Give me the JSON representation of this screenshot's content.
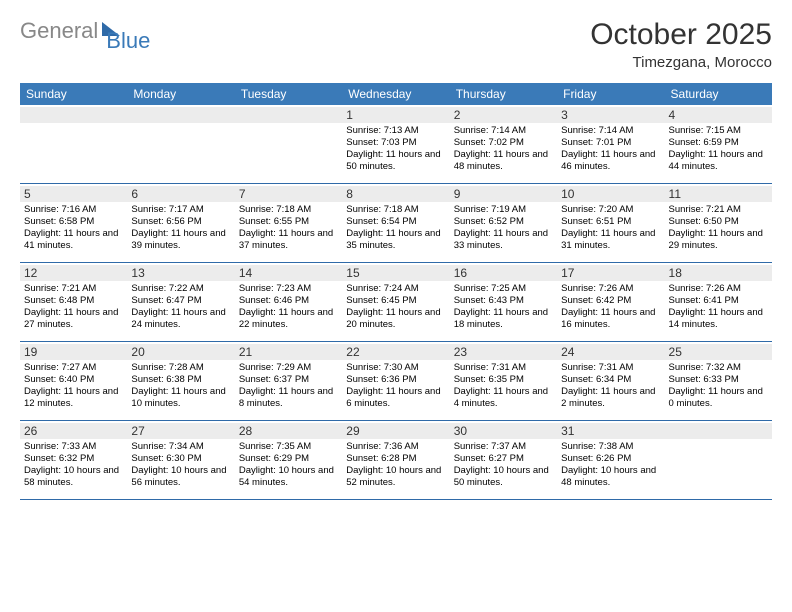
{
  "logo": {
    "general": "General",
    "blue": "Blue"
  },
  "title": "October 2025",
  "location": "Timezgana, Morocco",
  "day_headers": [
    "Sunday",
    "Monday",
    "Tuesday",
    "Wednesday",
    "Thursday",
    "Friday",
    "Saturday"
  ],
  "colors": {
    "header_bg": "#3a7ab8",
    "header_text": "#ffffff",
    "daynum_bg": "#ececec",
    "rule": "#2f6aa8",
    "logo_gray": "#888888",
    "logo_blue": "#3a7ab8"
  },
  "weeks": [
    [
      {
        "day": "",
        "sunrise": "",
        "sunset": "",
        "daylight": ""
      },
      {
        "day": "",
        "sunrise": "",
        "sunset": "",
        "daylight": ""
      },
      {
        "day": "",
        "sunrise": "",
        "sunset": "",
        "daylight": ""
      },
      {
        "day": "1",
        "sunrise": "Sunrise: 7:13 AM",
        "sunset": "Sunset: 7:03 PM",
        "daylight": "Daylight: 11 hours and 50 minutes."
      },
      {
        "day": "2",
        "sunrise": "Sunrise: 7:14 AM",
        "sunset": "Sunset: 7:02 PM",
        "daylight": "Daylight: 11 hours and 48 minutes."
      },
      {
        "day": "3",
        "sunrise": "Sunrise: 7:14 AM",
        "sunset": "Sunset: 7:01 PM",
        "daylight": "Daylight: 11 hours and 46 minutes."
      },
      {
        "day": "4",
        "sunrise": "Sunrise: 7:15 AM",
        "sunset": "Sunset: 6:59 PM",
        "daylight": "Daylight: 11 hours and 44 minutes."
      }
    ],
    [
      {
        "day": "5",
        "sunrise": "Sunrise: 7:16 AM",
        "sunset": "Sunset: 6:58 PM",
        "daylight": "Daylight: 11 hours and 41 minutes."
      },
      {
        "day": "6",
        "sunrise": "Sunrise: 7:17 AM",
        "sunset": "Sunset: 6:56 PM",
        "daylight": "Daylight: 11 hours and 39 minutes."
      },
      {
        "day": "7",
        "sunrise": "Sunrise: 7:18 AM",
        "sunset": "Sunset: 6:55 PM",
        "daylight": "Daylight: 11 hours and 37 minutes."
      },
      {
        "day": "8",
        "sunrise": "Sunrise: 7:18 AM",
        "sunset": "Sunset: 6:54 PM",
        "daylight": "Daylight: 11 hours and 35 minutes."
      },
      {
        "day": "9",
        "sunrise": "Sunrise: 7:19 AM",
        "sunset": "Sunset: 6:52 PM",
        "daylight": "Daylight: 11 hours and 33 minutes."
      },
      {
        "day": "10",
        "sunrise": "Sunrise: 7:20 AM",
        "sunset": "Sunset: 6:51 PM",
        "daylight": "Daylight: 11 hours and 31 minutes."
      },
      {
        "day": "11",
        "sunrise": "Sunrise: 7:21 AM",
        "sunset": "Sunset: 6:50 PM",
        "daylight": "Daylight: 11 hours and 29 minutes."
      }
    ],
    [
      {
        "day": "12",
        "sunrise": "Sunrise: 7:21 AM",
        "sunset": "Sunset: 6:48 PM",
        "daylight": "Daylight: 11 hours and 27 minutes."
      },
      {
        "day": "13",
        "sunrise": "Sunrise: 7:22 AM",
        "sunset": "Sunset: 6:47 PM",
        "daylight": "Daylight: 11 hours and 24 minutes."
      },
      {
        "day": "14",
        "sunrise": "Sunrise: 7:23 AM",
        "sunset": "Sunset: 6:46 PM",
        "daylight": "Daylight: 11 hours and 22 minutes."
      },
      {
        "day": "15",
        "sunrise": "Sunrise: 7:24 AM",
        "sunset": "Sunset: 6:45 PM",
        "daylight": "Daylight: 11 hours and 20 minutes."
      },
      {
        "day": "16",
        "sunrise": "Sunrise: 7:25 AM",
        "sunset": "Sunset: 6:43 PM",
        "daylight": "Daylight: 11 hours and 18 minutes."
      },
      {
        "day": "17",
        "sunrise": "Sunrise: 7:26 AM",
        "sunset": "Sunset: 6:42 PM",
        "daylight": "Daylight: 11 hours and 16 minutes."
      },
      {
        "day": "18",
        "sunrise": "Sunrise: 7:26 AM",
        "sunset": "Sunset: 6:41 PM",
        "daylight": "Daylight: 11 hours and 14 minutes."
      }
    ],
    [
      {
        "day": "19",
        "sunrise": "Sunrise: 7:27 AM",
        "sunset": "Sunset: 6:40 PM",
        "daylight": "Daylight: 11 hours and 12 minutes."
      },
      {
        "day": "20",
        "sunrise": "Sunrise: 7:28 AM",
        "sunset": "Sunset: 6:38 PM",
        "daylight": "Daylight: 11 hours and 10 minutes."
      },
      {
        "day": "21",
        "sunrise": "Sunrise: 7:29 AM",
        "sunset": "Sunset: 6:37 PM",
        "daylight": "Daylight: 11 hours and 8 minutes."
      },
      {
        "day": "22",
        "sunrise": "Sunrise: 7:30 AM",
        "sunset": "Sunset: 6:36 PM",
        "daylight": "Daylight: 11 hours and 6 minutes."
      },
      {
        "day": "23",
        "sunrise": "Sunrise: 7:31 AM",
        "sunset": "Sunset: 6:35 PM",
        "daylight": "Daylight: 11 hours and 4 minutes."
      },
      {
        "day": "24",
        "sunrise": "Sunrise: 7:31 AM",
        "sunset": "Sunset: 6:34 PM",
        "daylight": "Daylight: 11 hours and 2 minutes."
      },
      {
        "day": "25",
        "sunrise": "Sunrise: 7:32 AM",
        "sunset": "Sunset: 6:33 PM",
        "daylight": "Daylight: 11 hours and 0 minutes."
      }
    ],
    [
      {
        "day": "26",
        "sunrise": "Sunrise: 7:33 AM",
        "sunset": "Sunset: 6:32 PM",
        "daylight": "Daylight: 10 hours and 58 minutes."
      },
      {
        "day": "27",
        "sunrise": "Sunrise: 7:34 AM",
        "sunset": "Sunset: 6:30 PM",
        "daylight": "Daylight: 10 hours and 56 minutes."
      },
      {
        "day": "28",
        "sunrise": "Sunrise: 7:35 AM",
        "sunset": "Sunset: 6:29 PM",
        "daylight": "Daylight: 10 hours and 54 minutes."
      },
      {
        "day": "29",
        "sunrise": "Sunrise: 7:36 AM",
        "sunset": "Sunset: 6:28 PM",
        "daylight": "Daylight: 10 hours and 52 minutes."
      },
      {
        "day": "30",
        "sunrise": "Sunrise: 7:37 AM",
        "sunset": "Sunset: 6:27 PM",
        "daylight": "Daylight: 10 hours and 50 minutes."
      },
      {
        "day": "31",
        "sunrise": "Sunrise: 7:38 AM",
        "sunset": "Sunset: 6:26 PM",
        "daylight": "Daylight: 10 hours and 48 minutes."
      },
      {
        "day": "",
        "sunrise": "",
        "sunset": "",
        "daylight": ""
      }
    ]
  ]
}
